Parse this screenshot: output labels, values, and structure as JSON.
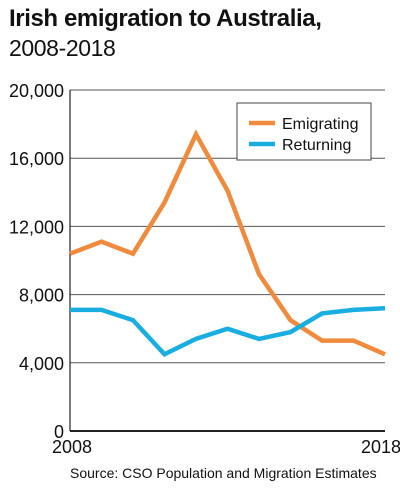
{
  "chart_data": {
    "type": "line",
    "title": "Irish emigration to Australia,",
    "subtitle": "2008-2018",
    "source": "Source: CSO Population and Migration Estimates",
    "x": [
      2008,
      2009,
      2010,
      2011,
      2012,
      2013,
      2014,
      2015,
      2016,
      2017,
      2018
    ],
    "x_tick_labels": [
      "2008",
      "2018"
    ],
    "ylim": [
      0,
      20000
    ],
    "y_ticks": [
      0,
      4000,
      8000,
      12000,
      16000,
      20000
    ],
    "y_tick_labels": [
      "0",
      "4,000",
      "8,000",
      "12,000",
      "16,000",
      "20,000"
    ],
    "grid": true,
    "legend_position": "top-right",
    "series": [
      {
        "name": "Emigrating",
        "color": "#f08a3c",
        "values": [
          10400,
          11100,
          10400,
          13400,
          17400,
          14100,
          9200,
          6500,
          5300,
          5300,
          4500
        ]
      },
      {
        "name": "Returning",
        "color": "#1aaee0",
        "values": [
          7100,
          7100,
          6500,
          4500,
          5400,
          6000,
          5400,
          5800,
          6900,
          7100,
          7200
        ]
      }
    ]
  }
}
